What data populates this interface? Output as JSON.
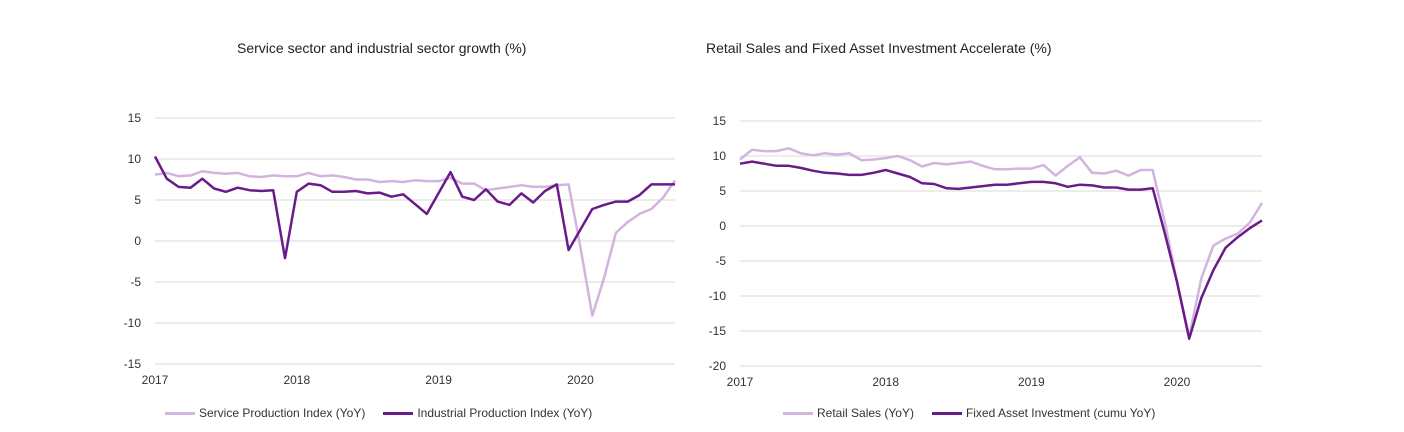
{
  "colors": {
    "light": "#d2b4de",
    "dark": "#6a1b8a",
    "grid": "#d9d9d9"
  },
  "chart_data": [
    {
      "type": "line",
      "title": "Service sector and industrial sector growth (%)",
      "xlabel": "",
      "ylabel": "",
      "ylim": [
        -15,
        15
      ],
      "yticks": [
        15,
        10,
        5,
        0,
        -5,
        -10,
        -15
      ],
      "xlim": [
        0,
        44
      ],
      "xticks": [
        {
          "x": 0,
          "label": "2017"
        },
        {
          "x": 12,
          "label": "2018"
        },
        {
          "x": 24,
          "label": "2019"
        },
        {
          "x": 36,
          "label": "2020"
        }
      ],
      "legend": "bottom",
      "series": [
        {
          "name": "Service Production Index (YoY)",
          "color": "light",
          "x": [
            0,
            1,
            2,
            3,
            4,
            5,
            6,
            7,
            8,
            9,
            10,
            11,
            12,
            13,
            14,
            15,
            16,
            17,
            18,
            19,
            20,
            21,
            22,
            23,
            24,
            25,
            26,
            27,
            28,
            29,
            30,
            31,
            32,
            33,
            34,
            35,
            36,
            37,
            38,
            39,
            40,
            41,
            42,
            43,
            44
          ],
          "values": [
            8.1,
            8.3,
            7.9,
            8.0,
            8.5,
            8.3,
            8.2,
            8.3,
            7.9,
            7.8,
            8.0,
            7.9,
            7.9,
            8.3,
            7.9,
            8.0,
            7.8,
            7.5,
            7.5,
            7.2,
            7.3,
            7.2,
            7.4,
            7.3,
            7.3,
            7.7,
            7.0,
            7.0,
            6.2,
            6.4,
            6.6,
            6.8,
            6.6,
            6.6,
            6.8,
            6.9,
            -0.8,
            -9.1,
            -4.5,
            1.0,
            2.3,
            3.3,
            3.9,
            5.3,
            7.4
          ]
        },
        {
          "name": "Industrial Production Index (YoY)",
          "color": "dark",
          "x": [
            0,
            1,
            2,
            3,
            4,
            5,
            6,
            7,
            8,
            9,
            10,
            11,
            12,
            13,
            14,
            15,
            16,
            17,
            18,
            19,
            20,
            21,
            22,
            23,
            25,
            26,
            27,
            28,
            29,
            30,
            31,
            32,
            33,
            34,
            35,
            37,
            38,
            39,
            40,
            41,
            42,
            43,
            44
          ],
          "values": [
            10.3,
            7.6,
            6.6,
            6.5,
            7.6,
            6.4,
            6.0,
            6.5,
            6.2,
            6.1,
            6.2,
            -2.1,
            6.0,
            7.0,
            6.8,
            6.0,
            6.0,
            6.1,
            5.8,
            5.9,
            5.4,
            5.7,
            4.5,
            3.3,
            8.4,
            5.4,
            5.0,
            6.3,
            4.8,
            4.4,
            5.8,
            4.7,
            6.1,
            6.9,
            -1.1,
            3.9,
            4.4,
            4.8,
            4.8,
            5.6,
            6.9,
            6.9,
            6.9
          ]
        }
      ]
    },
    {
      "type": "line",
      "title": "Retail Sales and Fixed Asset Investment Accelerate (%)",
      "xlabel": "",
      "ylabel": "",
      "ylim": [
        -20,
        15
      ],
      "yticks": [
        15,
        10,
        5,
        0,
        -5,
        -10,
        -15,
        -20
      ],
      "xlim": [
        0,
        43
      ],
      "xticks": [
        {
          "x": 0,
          "label": "2017"
        },
        {
          "x": 12,
          "label": "2018"
        },
        {
          "x": 24,
          "label": "2019"
        },
        {
          "x": 36,
          "label": "2020"
        }
      ],
      "legend": "bottom",
      "series": [
        {
          "name": "Retail Sales (YoY)",
          "color": "light",
          "x": [
            0,
            1,
            2,
            3,
            4,
            5,
            6,
            7,
            8,
            9,
            10,
            11,
            12,
            13,
            14,
            15,
            16,
            17,
            18,
            19,
            20,
            21,
            22,
            23,
            24,
            25,
            26,
            27,
            28,
            29,
            30,
            31,
            32,
            33,
            34,
            35,
            36,
            37,
            38,
            39,
            40,
            41,
            42,
            43
          ],
          "values": [
            9.5,
            10.9,
            10.7,
            10.7,
            11.1,
            10.4,
            10.1,
            10.4,
            10.2,
            10.4,
            9.4,
            9.5,
            9.7,
            10.0,
            9.4,
            8.5,
            9.0,
            8.8,
            9.0,
            9.2,
            8.6,
            8.1,
            8.1,
            8.2,
            8.2,
            8.7,
            7.2,
            8.6,
            9.8,
            7.6,
            7.5,
            7.9,
            7.2,
            8.0,
            8.0,
            0.5,
            -7.9,
            -15.8,
            -7.5,
            -2.8,
            -1.8,
            -1.1,
            0.5,
            3.3
          ]
        },
        {
          "name": "Fixed Asset Investment (cumu YoY)",
          "color": "dark",
          "x": [
            0,
            1,
            2,
            3,
            4,
            5,
            6,
            7,
            8,
            9,
            10,
            11,
            12,
            13,
            14,
            15,
            16,
            17,
            18,
            19,
            20,
            21,
            22,
            23,
            24,
            25,
            26,
            27,
            28,
            29,
            30,
            31,
            32,
            33,
            34,
            35,
            36,
            37,
            38,
            39,
            40,
            41,
            42,
            43
          ],
          "values": [
            8.9,
            9.2,
            8.9,
            8.6,
            8.6,
            8.3,
            7.9,
            7.6,
            7.5,
            7.3,
            7.3,
            7.6,
            8.0,
            7.5,
            7.0,
            6.1,
            6.0,
            5.4,
            5.3,
            5.5,
            5.7,
            5.9,
            5.9,
            6.1,
            6.3,
            6.3,
            6.1,
            5.6,
            5.9,
            5.8,
            5.5,
            5.5,
            5.2,
            5.2,
            5.4,
            -1.1,
            -8.0,
            -16.1,
            -10.3,
            -6.3,
            -3.1,
            -1.6,
            -0.3,
            0.8
          ]
        }
      ]
    }
  ]
}
